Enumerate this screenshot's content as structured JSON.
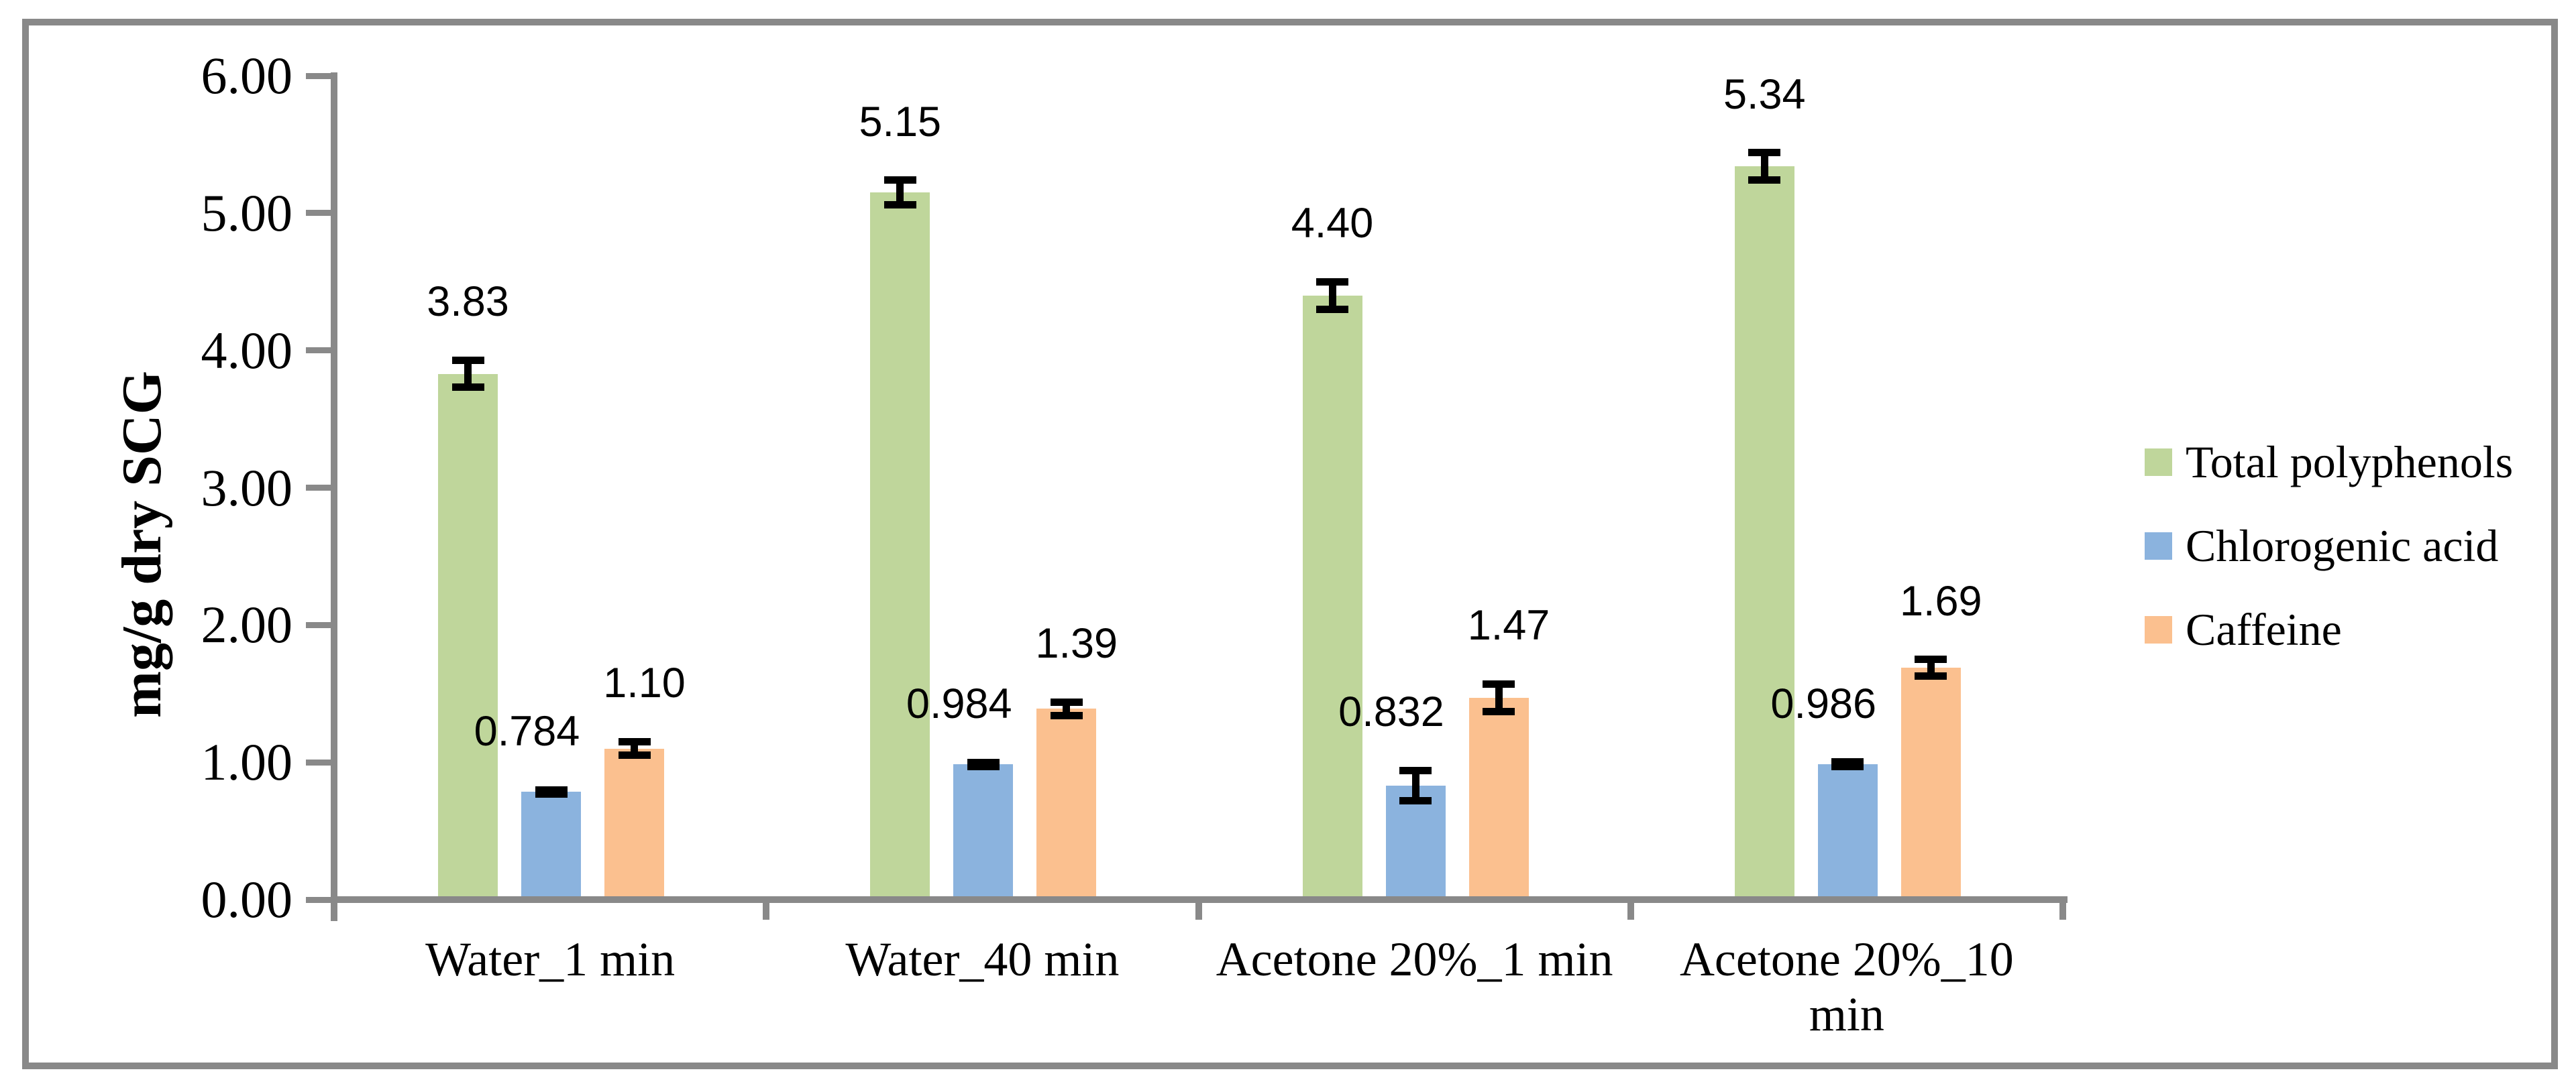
{
  "chart_data": {
    "type": "bar",
    "title": "",
    "ylabel": "mg/g dry SCG",
    "xlabel": "",
    "ylim": [
      0,
      6
    ],
    "ytick_step": 1.0,
    "ytick_labels": [
      "0.00",
      "1.00",
      "2.00",
      "3.00",
      "4.00",
      "5.00",
      "6.00"
    ],
    "categories": [
      "Water_1 min",
      "Water_40 min",
      "Acetone 20%_1 min",
      "Acetone 20%_10 min"
    ],
    "category_label_lines": [
      [
        "Water_1 min"
      ],
      [
        "Water_40 min"
      ],
      [
        "Acetone 20%_1 min"
      ],
      [
        "Acetone 20%_10",
        "min"
      ]
    ],
    "grid": false,
    "legend_position": "right",
    "axis_color": "#898989",
    "error_bar_color": "#000000",
    "series": [
      {
        "name": "Total polyphenols",
        "color": "#BFD69B",
        "values": [
          3.83,
          5.15,
          4.4,
          5.34
        ],
        "value_labels": [
          "3.83",
          "5.15",
          "4.40",
          "5.34"
        ],
        "errors": [
          0.1,
          0.09,
          0.1,
          0.1
        ]
      },
      {
        "name": "Chlorogenic acid",
        "color": "#8BB3DE",
        "values": [
          0.784,
          0.984,
          0.832,
          0.986
        ],
        "value_labels": [
          "0.784",
          "0.984",
          "0.832",
          "0.986"
        ],
        "errors": [
          0.015,
          0.015,
          0.11,
          0.015
        ]
      },
      {
        "name": "Caffeine",
        "color": "#FBC08F",
        "values": [
          1.1,
          1.39,
          1.47,
          1.69
        ],
        "value_labels": [
          "1.10",
          "1.39",
          "1.47",
          "1.69"
        ],
        "errors": [
          0.05,
          0.05,
          0.1,
          0.06
        ]
      }
    ]
  }
}
